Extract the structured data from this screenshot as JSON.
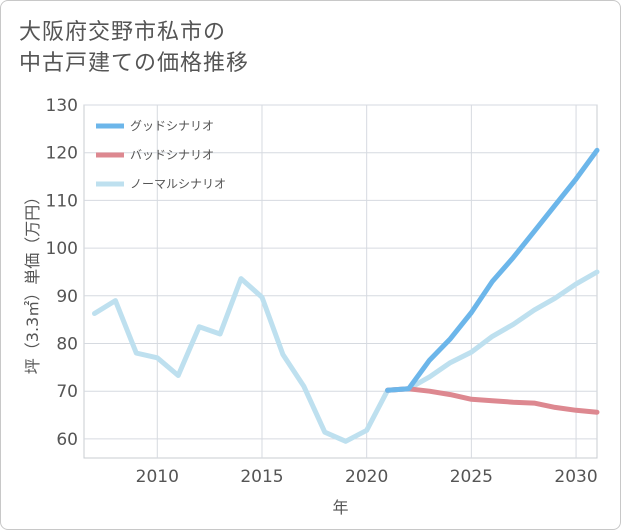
{
  "title_line1": "大阪府交野市私市の",
  "title_line2": "中古戸建ての価格推移",
  "chart_data": {
    "type": "line",
    "title": "大阪府交野市私市の中古戸建ての価格推移",
    "xlabel": "年",
    "ylabel": "坪（3.3㎡）単価（万円）",
    "xlim": [
      2006.5,
      2031
    ],
    "ylim": [
      56,
      130
    ],
    "x_ticks": [
      2010,
      2015,
      2020,
      2025,
      2030
    ],
    "y_ticks": [
      60,
      70,
      80,
      90,
      100,
      110,
      120,
      130
    ],
    "grid": true,
    "legend_position": "top-left",
    "series": [
      {
        "name": "グッドシナリオ",
        "color": "#6cb6ea",
        "x": [
          2021,
          2022,
          2023,
          2024,
          2025,
          2026,
          2027,
          2028,
          2029,
          2030,
          2031
        ],
        "values": [
          70.2,
          70.5,
          76.5,
          81,
          86.5,
          93,
          98,
          103.5,
          109,
          114.5,
          120.5
        ]
      },
      {
        "name": "バッドシナリオ",
        "color": "#dd8890",
        "x": [
          2021,
          2022,
          2023,
          2024,
          2025,
          2026,
          2027,
          2028,
          2029,
          2030,
          2031
        ],
        "values": [
          70.2,
          70.5,
          70,
          69.3,
          68.3,
          68,
          67.7,
          67.5,
          66.6,
          66,
          65.6
        ]
      },
      {
        "name": "ノーマルシナリオ",
        "color": "#bee0ef",
        "x": [
          2007,
          2008,
          2009,
          2010,
          2011,
          2012,
          2013,
          2014,
          2015,
          2016,
          2017,
          2018,
          2019,
          2020,
          2021,
          2022,
          2023,
          2024,
          2025,
          2026,
          2027,
          2028,
          2029,
          2030,
          2031
        ],
        "values": [
          86.3,
          89,
          78,
          77,
          73.3,
          83.5,
          82,
          93.6,
          89.7,
          77.7,
          71,
          61.4,
          59.5,
          61.8,
          70.2,
          70.5,
          73,
          76,
          78.2,
          81.5,
          84,
          87,
          89.5,
          92.5,
          95
        ]
      }
    ]
  }
}
